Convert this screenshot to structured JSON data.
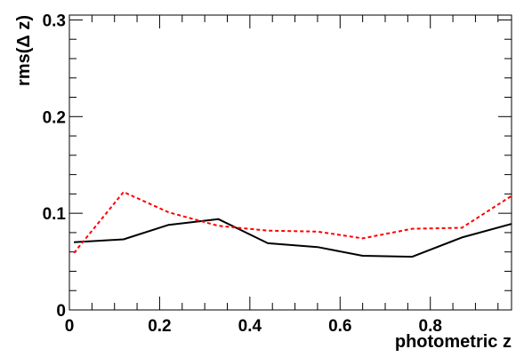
{
  "chart_data": {
    "type": "line",
    "title": "",
    "xlabel": "photometric z",
    "ylabel": "rms(Δ z)",
    "xlim": [
      0,
      0.98
    ],
    "ylim": [
      0,
      0.305
    ],
    "x_ticks": [
      "0",
      "0.2",
      "0.4",
      "0.6",
      "0.8"
    ],
    "y_ticks": [
      "0",
      "0.1",
      "0.2",
      "0.3"
    ],
    "grid": false,
    "legend": "none",
    "series": [
      {
        "color": "#000000",
        "dash": "solid",
        "x": [
          0.01,
          0.12,
          0.22,
          0.33,
          0.44,
          0.55,
          0.65,
          0.76,
          0.87,
          0.98
        ],
        "y": [
          0.07,
          0.073,
          0.088,
          0.094,
          0.069,
          0.065,
          0.056,
          0.055,
          0.075,
          0.089
        ]
      },
      {
        "color": "#ff0000",
        "dash": "dotted",
        "x": [
          0.01,
          0.12,
          0.22,
          0.33,
          0.44,
          0.55,
          0.65,
          0.76,
          0.87,
          0.98
        ],
        "y": [
          0.059,
          0.122,
          0.101,
          0.087,
          0.082,
          0.081,
          0.074,
          0.084,
          0.085,
          0.118
        ]
      }
    ]
  }
}
